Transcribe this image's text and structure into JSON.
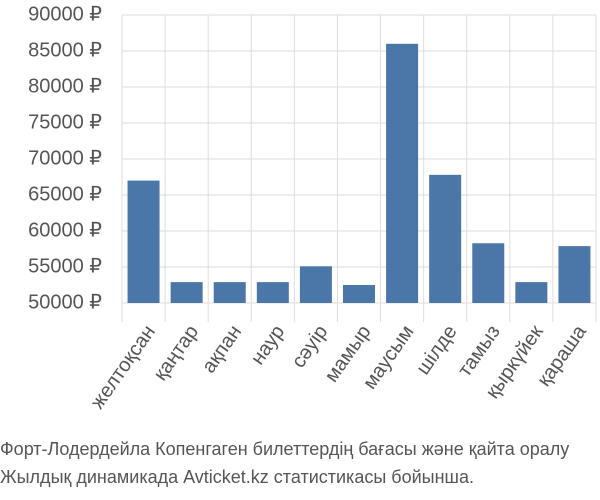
{
  "chart_data": {
    "type": "bar",
    "categories": [
      "желтоқсан",
      "қаңтар",
      "ақпан",
      "наур",
      "сәуір",
      "мамыр",
      "маусым",
      "шілде",
      "тамыз",
      "қыркүйек",
      "қараша"
    ],
    "values": [
      67000,
      52900,
      52900,
      52900,
      55100,
      52500,
      86000,
      67800,
      58300,
      52900,
      57900
    ],
    "color": "#4a76a8",
    "ylim": [
      50000,
      90000
    ],
    "yticks": [
      {
        "value": 50000,
        "label": "50000 ₽"
      },
      {
        "value": 55000,
        "label": "55000 ₽"
      },
      {
        "value": 60000,
        "label": "60000 ₽"
      },
      {
        "value": 65000,
        "label": "65000 ₽"
      },
      {
        "value": 70000,
        "label": "70000 ₽"
      },
      {
        "value": 75000,
        "label": "75000 ₽"
      },
      {
        "value": 80000,
        "label": "80000 ₽"
      },
      {
        "value": 85000,
        "label": "85000 ₽"
      },
      {
        "value": 90000,
        "label": "90000 ₽"
      }
    ],
    "grid": true,
    "caption": [
      "Форт-Лодердейла Копенгаген билеттердің бағасы және қайта оралу",
      "Жылдық динамикада Avticket.kz статистикасы бойынша."
    ]
  }
}
